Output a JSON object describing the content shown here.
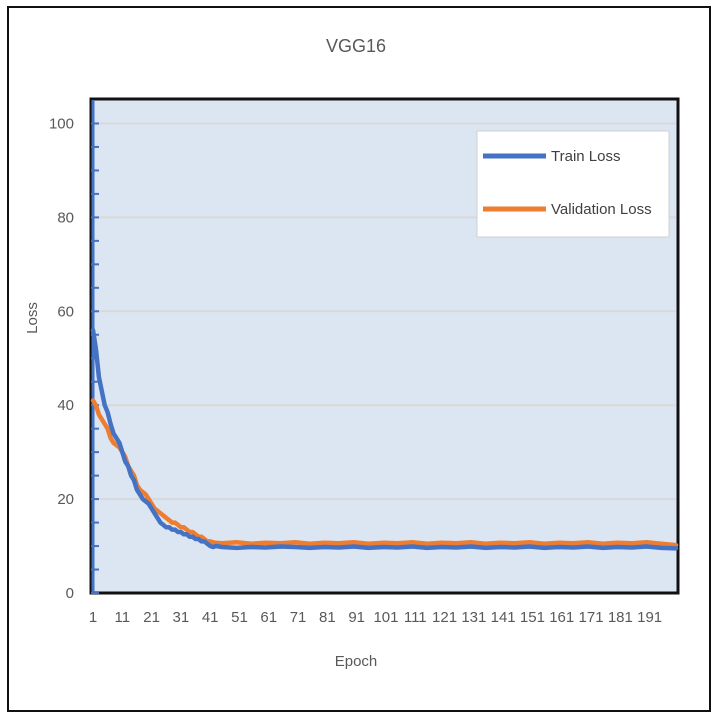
{
  "chart_data": {
    "type": "line",
    "title": "VGG16",
    "xlabel": "Epoch",
    "ylabel": "Loss",
    "ylim": [
      0,
      105
    ],
    "yticks": [
      0,
      20,
      40,
      60,
      80,
      100
    ],
    "xtick_labels": [
      "1",
      "11",
      "21",
      "31",
      "41",
      "51",
      "61",
      "71",
      "81",
      "91",
      "101",
      "111",
      "121",
      "131",
      "141",
      "151",
      "161",
      "171",
      "181",
      "191"
    ],
    "grid": "horizontal",
    "legend": "top-right",
    "x_range": [
      1,
      200
    ],
    "series": [
      {
        "name": "Train Loss",
        "color": "#4472C4",
        "points": [
          [
            1,
            56
          ],
          [
            2,
            52
          ],
          [
            3,
            46
          ],
          [
            4,
            43
          ],
          [
            5,
            40
          ],
          [
            6,
            38.5
          ],
          [
            7,
            36
          ],
          [
            8,
            34
          ],
          [
            9,
            33
          ],
          [
            10,
            32
          ],
          [
            11,
            30
          ],
          [
            12,
            28
          ],
          [
            13,
            27
          ],
          [
            14,
            25
          ],
          [
            15,
            24
          ],
          [
            16,
            22
          ],
          [
            17,
            21
          ],
          [
            18,
            20
          ],
          [
            19,
            19.5
          ],
          [
            20,
            19
          ],
          [
            21,
            18
          ],
          [
            22,
            17
          ],
          [
            23,
            16
          ],
          [
            24,
            15
          ],
          [
            25,
            14.5
          ],
          [
            26,
            14
          ],
          [
            27,
            14
          ],
          [
            28,
            13.5
          ],
          [
            29,
            13.5
          ],
          [
            30,
            13
          ],
          [
            31,
            13
          ],
          [
            32,
            12.5
          ],
          [
            33,
            12.5
          ],
          [
            34,
            12
          ],
          [
            35,
            12
          ],
          [
            36,
            11.5
          ],
          [
            37,
            11.5
          ],
          [
            38,
            11
          ],
          [
            39,
            11
          ],
          [
            40,
            10.5
          ],
          [
            41,
            10
          ],
          [
            42,
            9.8
          ],
          [
            43,
            10
          ],
          [
            45,
            9.8
          ],
          [
            50,
            9.6
          ],
          [
            55,
            9.8
          ],
          [
            60,
            9.7
          ],
          [
            65,
            9.9
          ],
          [
            70,
            9.8
          ],
          [
            75,
            9.6
          ],
          [
            80,
            9.8
          ],
          [
            85,
            9.7
          ],
          [
            90,
            9.9
          ],
          [
            95,
            9.6
          ],
          [
            100,
            9.8
          ],
          [
            105,
            9.7
          ],
          [
            110,
            9.9
          ],
          [
            115,
            9.6
          ],
          [
            120,
            9.8
          ],
          [
            125,
            9.7
          ],
          [
            130,
            9.9
          ],
          [
            135,
            9.6
          ],
          [
            140,
            9.8
          ],
          [
            145,
            9.7
          ],
          [
            150,
            9.9
          ],
          [
            155,
            9.6
          ],
          [
            160,
            9.8
          ],
          [
            165,
            9.7
          ],
          [
            170,
            9.9
          ],
          [
            175,
            9.6
          ],
          [
            180,
            9.8
          ],
          [
            185,
            9.7
          ],
          [
            190,
            9.9
          ],
          [
            195,
            9.6
          ],
          [
            200,
            9.5
          ]
        ]
      },
      {
        "name": "Validation Loss",
        "color": "#ED7D31",
        "points": [
          [
            1,
            41
          ],
          [
            2,
            40
          ],
          [
            3,
            38
          ],
          [
            4,
            37
          ],
          [
            5,
            36
          ],
          [
            6,
            35
          ],
          [
            7,
            33
          ],
          [
            8,
            32
          ],
          [
            9,
            31.5
          ],
          [
            10,
            31
          ],
          [
            11,
            30
          ],
          [
            12,
            29
          ],
          [
            13,
            27
          ],
          [
            14,
            26
          ],
          [
            15,
            25
          ],
          [
            16,
            23
          ],
          [
            17,
            22
          ],
          [
            18,
            21.5
          ],
          [
            19,
            21
          ],
          [
            20,
            20
          ],
          [
            21,
            19
          ],
          [
            22,
            18
          ],
          [
            23,
            17.5
          ],
          [
            24,
            17
          ],
          [
            25,
            16.5
          ],
          [
            26,
            16
          ],
          [
            27,
            15.5
          ],
          [
            28,
            15
          ],
          [
            29,
            15
          ],
          [
            30,
            14.5
          ],
          [
            31,
            14
          ],
          [
            32,
            14
          ],
          [
            33,
            13.5
          ],
          [
            34,
            13
          ],
          [
            35,
            13
          ],
          [
            36,
            12.5
          ],
          [
            37,
            12
          ],
          [
            38,
            12
          ],
          [
            39,
            11.5
          ],
          [
            40,
            11
          ],
          [
            41,
            11
          ],
          [
            42,
            10.8
          ],
          [
            43,
            10.7
          ],
          [
            45,
            10.6
          ],
          [
            50,
            10.8
          ],
          [
            55,
            10.5
          ],
          [
            60,
            10.7
          ],
          [
            65,
            10.6
          ],
          [
            70,
            10.8
          ],
          [
            75,
            10.5
          ],
          [
            80,
            10.7
          ],
          [
            85,
            10.6
          ],
          [
            90,
            10.8
          ],
          [
            95,
            10.5
          ],
          [
            100,
            10.7
          ],
          [
            105,
            10.6
          ],
          [
            110,
            10.8
          ],
          [
            115,
            10.5
          ],
          [
            120,
            10.7
          ],
          [
            125,
            10.6
          ],
          [
            130,
            10.8
          ],
          [
            135,
            10.5
          ],
          [
            140,
            10.7
          ],
          [
            145,
            10.6
          ],
          [
            150,
            10.8
          ],
          [
            155,
            10.5
          ],
          [
            160,
            10.7
          ],
          [
            165,
            10.6
          ],
          [
            170,
            10.8
          ],
          [
            175,
            10.5
          ],
          [
            180,
            10.7
          ],
          [
            185,
            10.6
          ],
          [
            190,
            10.8
          ],
          [
            195,
            10.5
          ],
          [
            200,
            10.2
          ]
        ]
      }
    ]
  }
}
